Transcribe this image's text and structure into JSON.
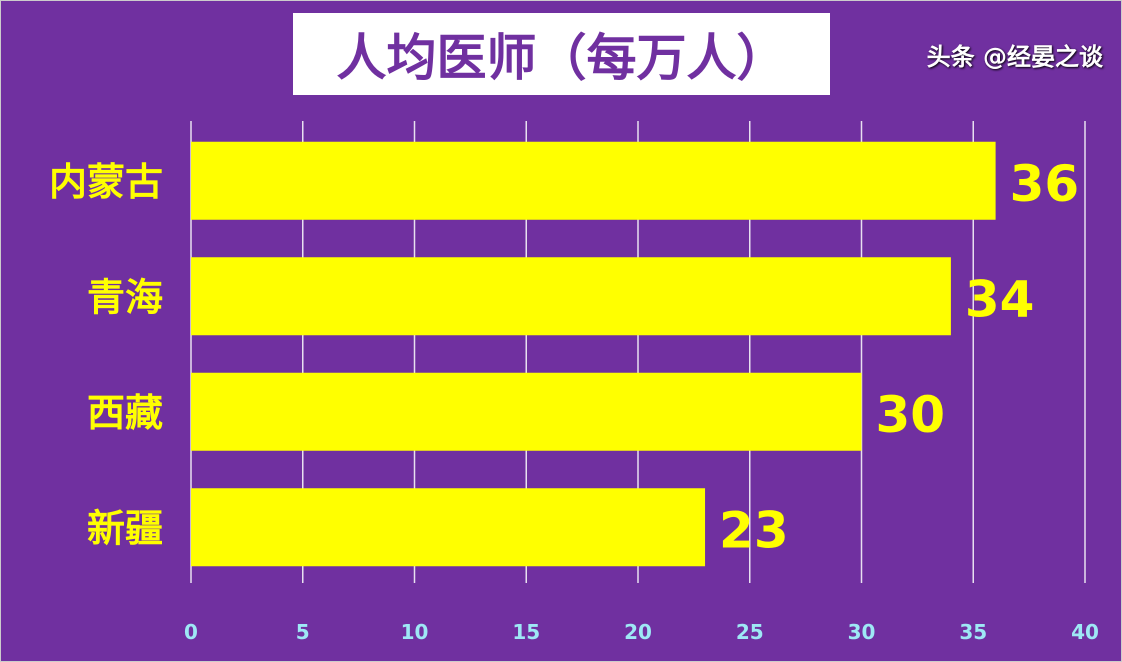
{
  "chart_data": {
    "type": "bar",
    "orientation": "horizontal",
    "title": "人均医师（每万人）",
    "categories": [
      "内蒙古",
      "青海",
      "西藏",
      "新疆"
    ],
    "values": [
      36,
      34,
      30,
      23
    ],
    "xlim": [
      0,
      40
    ],
    "xticks": [
      0,
      5,
      10,
      15,
      20,
      25,
      30,
      35,
      40
    ],
    "grid": true,
    "colors": {
      "background": "#7030A0",
      "bar": "#FFFF00",
      "label": "#FFFF00",
      "tick": "#9EE8F5"
    }
  },
  "watermark": "头条 @经晏之谈"
}
